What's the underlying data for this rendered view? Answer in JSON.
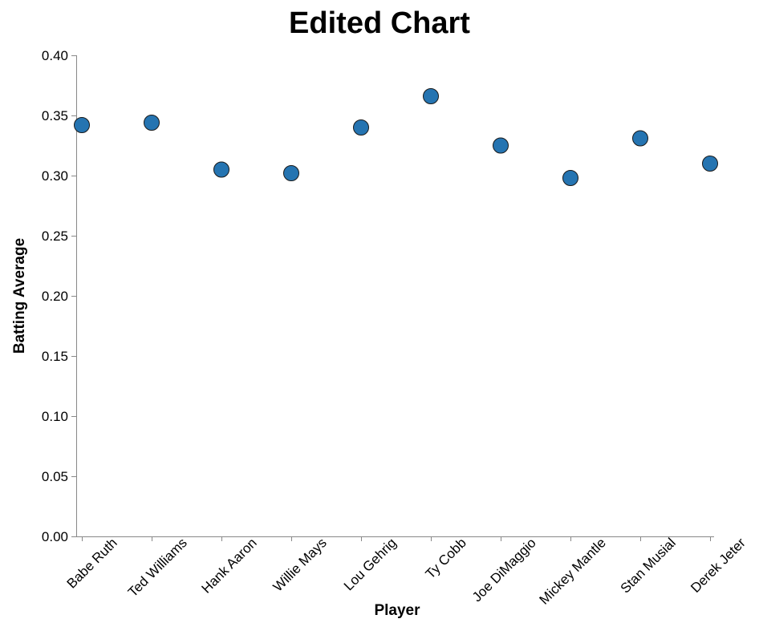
{
  "chart_data": {
    "type": "scatter",
    "title": "Edited Chart",
    "xlabel": "Player",
    "ylabel": "Batting Average",
    "categories": [
      "Babe Ruth",
      "Ted Williams",
      "Hank Aaron",
      "Willie Mays",
      "Lou Gehrig",
      "Ty Cobb",
      "Joe DiMaggio",
      "Mickey Mantle",
      "Stan Musial",
      "Derek Jeter"
    ],
    "values": [
      0.342,
      0.344,
      0.305,
      0.302,
      0.34,
      0.366,
      0.325,
      0.298,
      0.331,
      0.31
    ],
    "ylim": [
      0,
      0.4
    ],
    "yticks": [
      "0.00",
      "0.05",
      "0.10",
      "0.15",
      "0.20",
      "0.25",
      "0.30",
      "0.35",
      "0.40"
    ],
    "grid": false,
    "legend": "none",
    "point_color": "#2574b1",
    "point_stroke": "#1a1a1a"
  }
}
